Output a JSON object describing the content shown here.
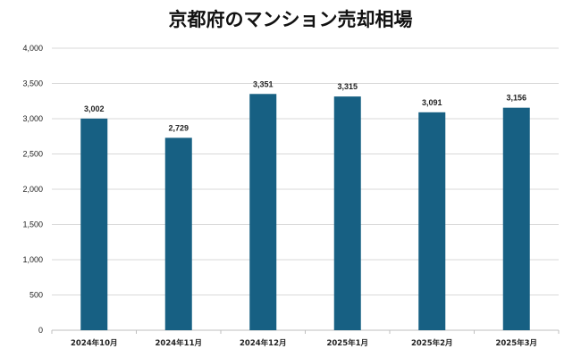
{
  "chart_data": {
    "type": "bar",
    "title": "京都府のマンション売却相場",
    "xlabel": "",
    "ylabel": "",
    "categories": [
      "2024年10月",
      "2024年11月",
      "2024年12月",
      "2025年1月",
      "2025年2月",
      "2025年3月"
    ],
    "values": [
      3002,
      2729,
      3351,
      3315,
      3091,
      3156
    ],
    "data_labels": [
      "3,002",
      "2,729",
      "3,351",
      "3,315",
      "3,091",
      "3,156"
    ],
    "ylim": [
      0,
      4000
    ],
    "yticks": [
      0,
      500,
      1000,
      1500,
      2000,
      2500,
      3000,
      3500,
      4000
    ],
    "ytick_labels": [
      "0",
      "500",
      "1,000",
      "1,500",
      "2,000",
      "2,500",
      "3,000",
      "3,500",
      "4,000"
    ],
    "grid": true,
    "legend": "none",
    "bar_color": "#176083"
  }
}
